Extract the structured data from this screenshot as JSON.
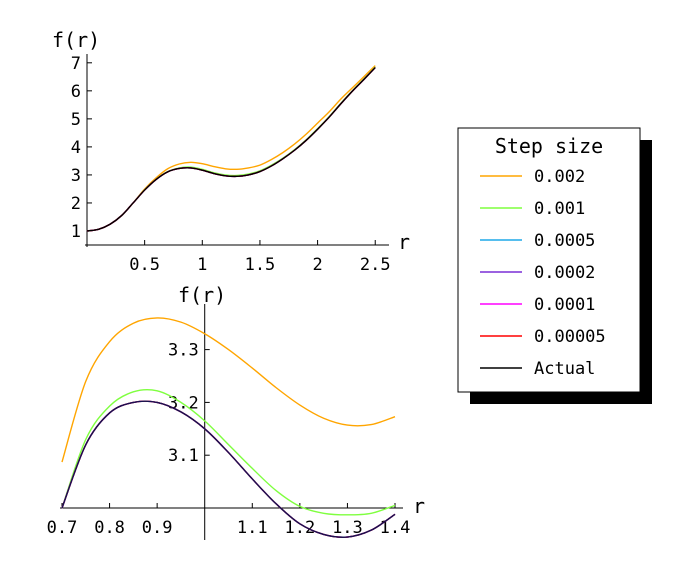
{
  "chart_data": [
    {
      "type": "line",
      "xlabel": "r",
      "ylabel": "f(r)",
      "xlim": [
        0,
        2.55
      ],
      "ylim": [
        0.5,
        7.1
      ],
      "x_ticks": [
        "0.5",
        "1",
        "1.5",
        "2",
        "2.5"
      ],
      "y_ticks": [
        "1",
        "2",
        "3",
        "4",
        "5",
        "6",
        "7"
      ],
      "series": [
        {
          "name": "0.002",
          "color": "#ffa500",
          "x": [
            0,
            0.1,
            0.2,
            0.3,
            0.4,
            0.5,
            0.6,
            0.7,
            0.8,
            0.9,
            1.0,
            1.1,
            1.2,
            1.3,
            1.4,
            1.5,
            1.6,
            1.7,
            1.8,
            1.9,
            2.0,
            2.1,
            2.2,
            2.3,
            2.4,
            2.5
          ],
          "y": [
            1.0,
            1.06,
            1.24,
            1.55,
            2.0,
            2.5,
            2.9,
            3.22,
            3.39,
            3.45,
            3.4,
            3.3,
            3.22,
            3.2,
            3.25,
            3.35,
            3.55,
            3.8,
            4.1,
            4.45,
            4.85,
            5.25,
            5.7,
            6.1,
            6.5,
            6.9
          ]
        },
        {
          "name": "0.001",
          "color": "#7fff3f",
          "x": [
            0,
            0.1,
            0.2,
            0.3,
            0.4,
            0.5,
            0.6,
            0.7,
            0.8,
            0.9,
            1.0,
            1.1,
            1.2,
            1.3,
            1.4,
            1.5,
            1.6,
            1.7,
            1.8,
            1.9,
            2.0,
            2.1,
            2.2,
            2.3,
            2.4,
            2.5
          ],
          "y": [
            1.0,
            1.06,
            1.24,
            1.55,
            2.0,
            2.47,
            2.85,
            3.12,
            3.25,
            3.28,
            3.2,
            3.08,
            3.0,
            2.98,
            3.03,
            3.15,
            3.35,
            3.6,
            3.9,
            4.25,
            4.65,
            5.08,
            5.55,
            6.0,
            6.42,
            6.85
          ]
        },
        {
          "name": "0.0005",
          "color": "#1fa9e8",
          "x": [
            0,
            0.1,
            0.2,
            0.3,
            0.4,
            0.5,
            0.6,
            0.7,
            0.8,
            0.9,
            1.0,
            1.1,
            1.2,
            1.3,
            1.4,
            1.5,
            1.6,
            1.7,
            1.8,
            1.9,
            2.0,
            2.1,
            2.2,
            2.3,
            2.4,
            2.5
          ],
          "y": [
            1.0,
            1.06,
            1.24,
            1.55,
            2.0,
            2.46,
            2.84,
            3.11,
            3.23,
            3.25,
            3.17,
            3.05,
            2.97,
            2.95,
            3.0,
            3.12,
            3.32,
            3.58,
            3.88,
            4.23,
            4.63,
            5.06,
            5.53,
            5.98,
            6.4,
            6.83
          ]
        },
        {
          "name": "0.0002",
          "color": "#7a2fd6",
          "x": [
            0,
            0.1,
            0.2,
            0.3,
            0.4,
            0.5,
            0.6,
            0.7,
            0.8,
            0.9,
            1.0,
            1.1,
            1.2,
            1.3,
            1.4,
            1.5,
            1.6,
            1.7,
            1.8,
            1.9,
            2.0,
            2.1,
            2.2,
            2.3,
            2.4,
            2.5
          ],
          "y": [
            1.0,
            1.06,
            1.24,
            1.55,
            2.0,
            2.46,
            2.84,
            3.11,
            3.23,
            3.25,
            3.17,
            3.05,
            2.97,
            2.95,
            3.0,
            3.12,
            3.32,
            3.58,
            3.88,
            4.23,
            4.63,
            5.06,
            5.53,
            5.98,
            6.4,
            6.83
          ]
        },
        {
          "name": "0.0001",
          "color": "#ff00ff",
          "x": [
            0,
            0.1,
            0.2,
            0.3,
            0.4,
            0.5,
            0.6,
            0.7,
            0.8,
            0.9,
            1.0,
            1.1,
            1.2,
            1.3,
            1.4,
            1.5,
            1.6,
            1.7,
            1.8,
            1.9,
            2.0,
            2.1,
            2.2,
            2.3,
            2.4,
            2.5
          ],
          "y": [
            1.0,
            1.06,
            1.24,
            1.55,
            2.0,
            2.46,
            2.84,
            3.11,
            3.23,
            3.25,
            3.17,
            3.05,
            2.97,
            2.95,
            3.0,
            3.12,
            3.32,
            3.58,
            3.88,
            4.23,
            4.63,
            5.06,
            5.53,
            5.98,
            6.4,
            6.83
          ]
        },
        {
          "name": "0.00005",
          "color": "#ff0000",
          "x": [
            0,
            0.1,
            0.2,
            0.3,
            0.4,
            0.5,
            0.6,
            0.7,
            0.8,
            0.9,
            1.0,
            1.1,
            1.2,
            1.3,
            1.4,
            1.5,
            1.6,
            1.7,
            1.8,
            1.9,
            2.0,
            2.1,
            2.2,
            2.3,
            2.4,
            2.5
          ],
          "y": [
            1.0,
            1.06,
            1.24,
            1.55,
            2.0,
            2.46,
            2.84,
            3.11,
            3.23,
            3.25,
            3.17,
            3.05,
            2.97,
            2.95,
            3.0,
            3.12,
            3.32,
            3.58,
            3.88,
            4.23,
            4.63,
            5.06,
            5.53,
            5.98,
            6.4,
            6.83
          ]
        },
        {
          "name": "Actual",
          "color": "#000000",
          "x": [
            0,
            0.1,
            0.2,
            0.3,
            0.4,
            0.5,
            0.6,
            0.7,
            0.8,
            0.9,
            1.0,
            1.1,
            1.2,
            1.3,
            1.4,
            1.5,
            1.6,
            1.7,
            1.8,
            1.9,
            2.0,
            2.1,
            2.2,
            2.3,
            2.4,
            2.5
          ],
          "y": [
            1.0,
            1.06,
            1.24,
            1.55,
            2.0,
            2.46,
            2.84,
            3.11,
            3.23,
            3.25,
            3.17,
            3.05,
            2.97,
            2.95,
            3.0,
            3.12,
            3.32,
            3.58,
            3.88,
            4.23,
            4.63,
            5.06,
            5.53,
            5.98,
            6.4,
            6.83
          ]
        }
      ]
    },
    {
      "type": "line",
      "xlabel": "r",
      "ylabel": "f(r)",
      "xlim": [
        0.7,
        1.4
      ],
      "ylim": [
        3.0,
        3.375
      ],
      "x_ticks": [
        "0.7",
        "0.8",
        "0.9",
        "1.1",
        "1.2",
        "1.3",
        "1.4"
      ],
      "y_ticks": [
        "3.1",
        "3.2",
        "3.3"
      ],
      "series": [
        {
          "name": "0.002",
          "color": "#ffa500",
          "x": [
            0.7,
            0.75,
            0.8,
            0.85,
            0.9,
            0.95,
            1.0,
            1.05,
            1.1,
            1.15,
            1.2,
            1.25,
            1.3,
            1.35,
            1.4
          ],
          "y": [
            3.087,
            3.24,
            3.315,
            3.35,
            3.36,
            3.352,
            3.33,
            3.3,
            3.265,
            3.228,
            3.195,
            3.17,
            3.157,
            3.158,
            3.173
          ]
        },
        {
          "name": "0.001",
          "color": "#7fff3f",
          "x": [
            0.7,
            0.75,
            0.8,
            0.85,
            0.9,
            0.95,
            1.0,
            1.05,
            1.1,
            1.15,
            1.2,
            1.25,
            1.3,
            1.35,
            1.4
          ],
          "y": [
            3.0,
            3.13,
            3.193,
            3.22,
            3.222,
            3.2,
            3.165,
            3.12,
            3.075,
            3.033,
            3.003,
            2.99,
            2.987,
            2.99,
            3.005
          ]
        },
        {
          "name": "0.0005",
          "color": "#1fa9e8",
          "x": [
            0.7,
            0.75,
            0.8,
            0.85,
            0.9,
            0.95,
            1.0,
            1.05,
            1.1,
            1.15,
            1.2,
            1.25,
            1.3,
            1.35,
            1.4
          ],
          "y": [
            3.0,
            3.12,
            3.18,
            3.2,
            3.2,
            3.182,
            3.15,
            3.105,
            3.055,
            3.008,
            2.97,
            2.95,
            2.945,
            2.958,
            2.988
          ]
        },
        {
          "name": "0.0002",
          "color": "#7a2fd6",
          "x": [
            0.7,
            0.75,
            0.8,
            0.85,
            0.9,
            0.95,
            1.0,
            1.05,
            1.1,
            1.15,
            1.2,
            1.25,
            1.3,
            1.35,
            1.4
          ],
          "y": [
            3.0,
            3.12,
            3.18,
            3.2,
            3.2,
            3.182,
            3.15,
            3.105,
            3.055,
            3.008,
            2.97,
            2.95,
            2.945,
            2.958,
            2.988
          ]
        },
        {
          "name": "0.0001",
          "color": "#ff00ff",
          "x": [
            0.7,
            0.75,
            0.8,
            0.85,
            0.9,
            0.95,
            1.0,
            1.05,
            1.1,
            1.15,
            1.2,
            1.25,
            1.3,
            1.35,
            1.4
          ],
          "y": [
            3.0,
            3.12,
            3.18,
            3.2,
            3.2,
            3.182,
            3.15,
            3.105,
            3.055,
            3.008,
            2.97,
            2.95,
            2.945,
            2.958,
            2.988
          ]
        },
        {
          "name": "0.00005",
          "color": "#ff0000",
          "x": [
            0.7,
            0.75,
            0.8,
            0.85,
            0.9,
            0.95,
            1.0,
            1.05,
            1.1,
            1.15,
            1.2,
            1.25,
            1.3,
            1.35,
            1.4
          ],
          "y": [
            3.0,
            3.12,
            3.18,
            3.2,
            3.2,
            3.182,
            3.15,
            3.105,
            3.055,
            3.008,
            2.97,
            2.95,
            2.945,
            2.958,
            2.988
          ]
        },
        {
          "name": "Actual",
          "color": "#141450",
          "x": [
            0.7,
            0.75,
            0.8,
            0.85,
            0.9,
            0.95,
            1.0,
            1.05,
            1.1,
            1.15,
            1.2,
            1.25,
            1.3,
            1.35,
            1.4
          ],
          "y": [
            3.0,
            3.12,
            3.18,
            3.2,
            3.2,
            3.182,
            3.15,
            3.105,
            3.055,
            3.008,
            2.97,
            2.95,
            2.945,
            2.958,
            2.988
          ]
        }
      ]
    }
  ],
  "legend": {
    "title": "Step size",
    "entries": [
      {
        "label": "0.002",
        "color": "#ffa500"
      },
      {
        "label": "0.001",
        "color": "#7fff3f"
      },
      {
        "label": "0.0005",
        "color": "#1fa9e8"
      },
      {
        "label": "0.0002",
        "color": "#7a2fd6"
      },
      {
        "label": "0.0001",
        "color": "#ff00ff"
      },
      {
        "label": "0.00005",
        "color": "#ff0000"
      },
      {
        "label": "Actual",
        "color": "#000000"
      }
    ]
  }
}
